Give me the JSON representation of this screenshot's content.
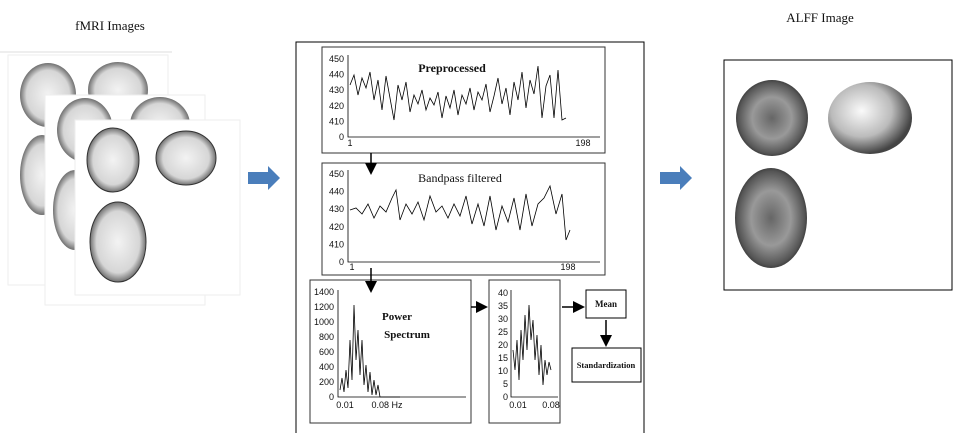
{
  "input": {
    "title": "fMRI  Images"
  },
  "output": {
    "title": "ALFF Image"
  },
  "panels": [
    {
      "title": "Preprocessed",
      "yticks": [
        "450",
        "440",
        "430",
        "420",
        "410",
        "0"
      ],
      "xticks": [
        "1",
        "198"
      ]
    },
    {
      "title": "Bandpass filtered",
      "yticks": [
        "450",
        "440",
        "430",
        "420",
        "410",
        "0"
      ],
      "xticks": [
        "1",
        "198"
      ]
    },
    {
      "title": [
        "Power",
        "Spectrum"
      ],
      "yticks": [
        "1400",
        "1200",
        "1000",
        "800",
        "600",
        "400",
        "200",
        "0"
      ],
      "xticks": [
        "0.01",
        "0.08 Hz"
      ]
    },
    {
      "yticks": [
        "40",
        "35",
        "30",
        "25",
        "20",
        "15",
        "10",
        "5",
        "0"
      ],
      "xticks": [
        "0.01",
        "0.08"
      ]
    }
  ],
  "steps": [
    "Mean",
    "Standardization"
  ]
}
